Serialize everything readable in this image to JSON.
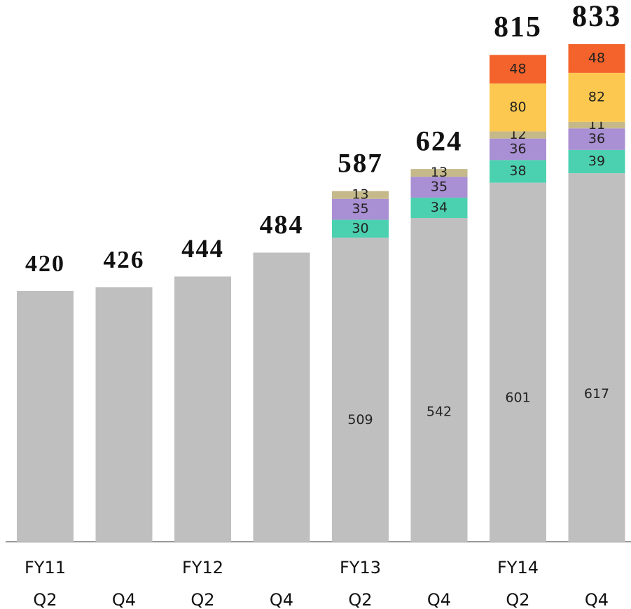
{
  "chart_data": {
    "type": "stacked_bar",
    "categories": [
      "Q2",
      "Q4",
      "Q2",
      "Q4",
      "Q2",
      "Q4",
      "Q2",
      "Q4"
    ],
    "year_labels": [
      "FY11",
      null,
      "FY12",
      null,
      "FY13",
      null,
      "FY14",
      null
    ],
    "totals": [
      420,
      426,
      444,
      484,
      587,
      624,
      815,
      833
    ],
    "series": [
      {
        "color": "#bfbfbf",
        "values": [
          420,
          426,
          444,
          484,
          509,
          542,
          601,
          617
        ]
      },
      {
        "color": "#4cd1b0",
        "values": [
          null,
          null,
          null,
          null,
          30,
          34,
          38,
          39
        ]
      },
      {
        "color": "#a98fd3",
        "values": [
          null,
          null,
          null,
          null,
          35,
          35,
          36,
          36
        ]
      },
      {
        "color": "#c5b98a",
        "values": [
          null,
          null,
          null,
          null,
          13,
          13,
          12,
          11
        ]
      },
      {
        "color": "#fcc84f",
        "values": [
          null,
          null,
          null,
          null,
          null,
          null,
          80,
          82
        ]
      },
      {
        "color": "#f4632b",
        "values": [
          null,
          null,
          null,
          null,
          null,
          null,
          48,
          48
        ]
      }
    ]
  }
}
